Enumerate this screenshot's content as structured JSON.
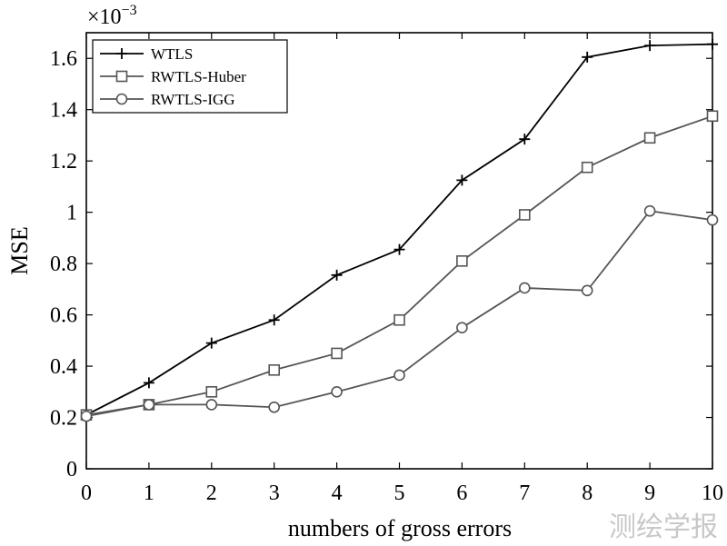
{
  "chart_data": {
    "type": "line",
    "title": "",
    "xlabel": "numbers of gross errors",
    "ylabel": "MSE",
    "y_exponent_label": "×10",
    "y_exponent_power": "−3",
    "xlim": [
      0,
      10
    ],
    "ylim": [
      0,
      1.7
    ],
    "x_ticks": [
      "0",
      "1",
      "2",
      "3",
      "4",
      "5",
      "6",
      "7",
      "8",
      "9",
      "10"
    ],
    "y_ticks": [
      "0",
      "0.2",
      "0.4",
      "0.6",
      "0.8",
      "1",
      "1.2",
      "1.4",
      "1.6"
    ],
    "grid": false,
    "legend_position": "top-left",
    "x": [
      0,
      1,
      2,
      3,
      4,
      5,
      6,
      7,
      8,
      9,
      10
    ],
    "series": [
      {
        "name": "WTLS",
        "marker": "plus",
        "color": "#000000",
        "values": [
          0.21,
          0.335,
          0.49,
          0.58,
          0.755,
          0.855,
          1.125,
          1.285,
          1.605,
          1.65,
          1.655
        ]
      },
      {
        "name": "RWTLS-Huber",
        "marker": "square",
        "color": "#555555",
        "values": [
          0.21,
          0.25,
          0.3,
          0.385,
          0.45,
          0.58,
          0.81,
          0.99,
          1.175,
          1.29,
          1.375
        ]
      },
      {
        "name": "RWTLS-IGG",
        "marker": "circle",
        "color": "#555555",
        "values": [
          0.205,
          0.25,
          0.25,
          0.24,
          0.3,
          0.365,
          0.55,
          0.705,
          0.695,
          1.005,
          0.97
        ]
      }
    ]
  },
  "watermark": "测绘学报"
}
